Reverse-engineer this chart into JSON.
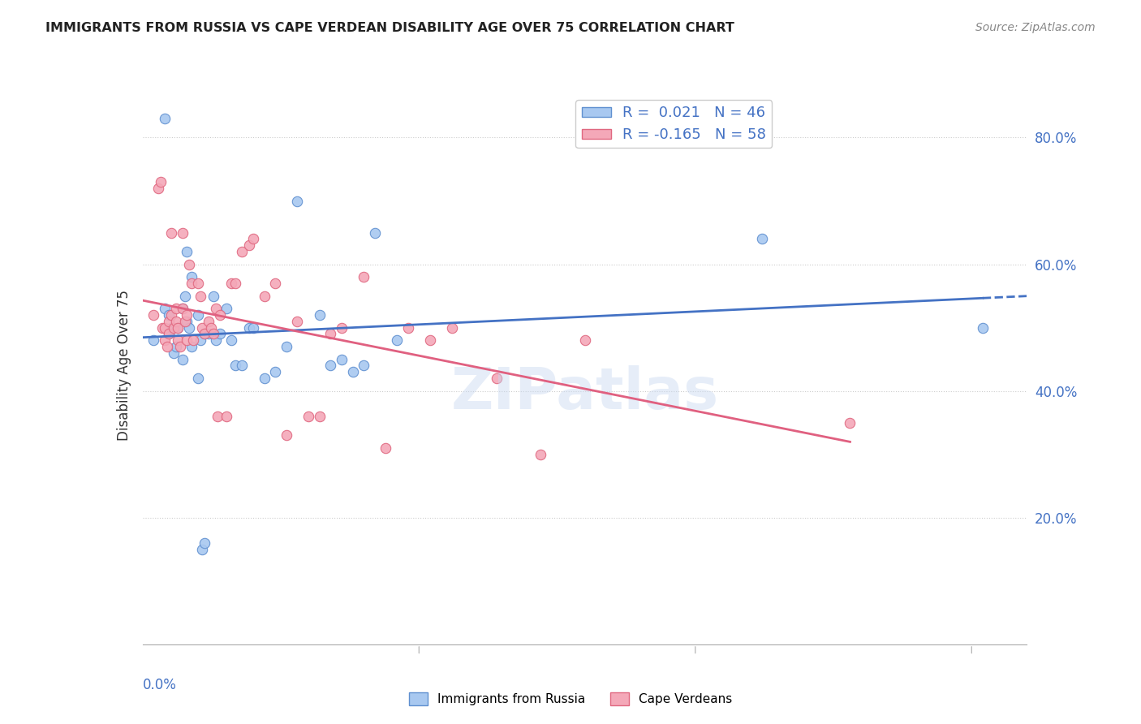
{
  "title": "IMMIGRANTS FROM RUSSIA VS CAPE VERDEAN DISABILITY AGE OVER 75 CORRELATION CHART",
  "source": "Source: ZipAtlas.com",
  "legend_label_blue": "Immigrants from Russia",
  "legend_label_pink": "Cape Verdeans",
  "R_blue": 0.021,
  "N_blue": 46,
  "R_pink": -0.165,
  "N_pink": 58,
  "blue_color": "#a8c8f0",
  "pink_color": "#f4a8b8",
  "blue_edge": "#6090d0",
  "pink_edge": "#e06880",
  "trend_blue": "#4472c4",
  "trend_pink": "#e06080",
  "background": "#ffffff",
  "grid_color": "#cccccc",
  "x_min": 0.0,
  "x_max": 0.4,
  "y_min": 0.0,
  "y_max": 0.88,
  "blue_points_x": [
    0.005,
    0.01,
    0.01,
    0.012,
    0.012,
    0.013,
    0.014,
    0.015,
    0.016,
    0.018,
    0.018,
    0.019,
    0.02,
    0.02,
    0.021,
    0.022,
    0.022,
    0.025,
    0.025,
    0.026,
    0.027,
    0.028,
    0.028,
    0.03,
    0.032,
    0.033,
    0.035,
    0.038,
    0.04,
    0.042,
    0.045,
    0.048,
    0.05,
    0.055,
    0.06,
    0.065,
    0.07,
    0.08,
    0.085,
    0.09,
    0.095,
    0.1,
    0.105,
    0.115,
    0.28,
    0.38
  ],
  "blue_points_y": [
    0.48,
    0.83,
    0.53,
    0.49,
    0.52,
    0.5,
    0.46,
    0.47,
    0.5,
    0.53,
    0.45,
    0.55,
    0.51,
    0.62,
    0.5,
    0.47,
    0.58,
    0.52,
    0.42,
    0.48,
    0.15,
    0.16,
    0.49,
    0.49,
    0.55,
    0.48,
    0.49,
    0.53,
    0.48,
    0.44,
    0.44,
    0.5,
    0.5,
    0.42,
    0.43,
    0.47,
    0.7,
    0.52,
    0.44,
    0.45,
    0.43,
    0.44,
    0.65,
    0.48,
    0.64,
    0.5
  ],
  "pink_points_x": [
    0.005,
    0.007,
    0.008,
    0.009,
    0.01,
    0.01,
    0.011,
    0.012,
    0.012,
    0.013,
    0.013,
    0.014,
    0.015,
    0.015,
    0.016,
    0.016,
    0.017,
    0.018,
    0.018,
    0.019,
    0.02,
    0.02,
    0.021,
    0.022,
    0.023,
    0.025,
    0.026,
    0.027,
    0.028,
    0.03,
    0.031,
    0.032,
    0.033,
    0.034,
    0.035,
    0.038,
    0.04,
    0.042,
    0.045,
    0.048,
    0.05,
    0.055,
    0.06,
    0.065,
    0.07,
    0.075,
    0.08,
    0.085,
    0.09,
    0.1,
    0.11,
    0.12,
    0.13,
    0.14,
    0.16,
    0.18,
    0.2,
    0.32
  ],
  "pink_points_y": [
    0.52,
    0.72,
    0.73,
    0.5,
    0.48,
    0.5,
    0.47,
    0.49,
    0.51,
    0.52,
    0.65,
    0.5,
    0.53,
    0.51,
    0.48,
    0.5,
    0.47,
    0.65,
    0.53,
    0.51,
    0.52,
    0.48,
    0.6,
    0.57,
    0.48,
    0.57,
    0.55,
    0.5,
    0.49,
    0.51,
    0.5,
    0.49,
    0.53,
    0.36,
    0.52,
    0.36,
    0.57,
    0.57,
    0.62,
    0.63,
    0.64,
    0.55,
    0.57,
    0.33,
    0.51,
    0.36,
    0.36,
    0.49,
    0.5,
    0.58,
    0.31,
    0.5,
    0.48,
    0.5,
    0.42,
    0.3,
    0.48,
    0.35
  ]
}
